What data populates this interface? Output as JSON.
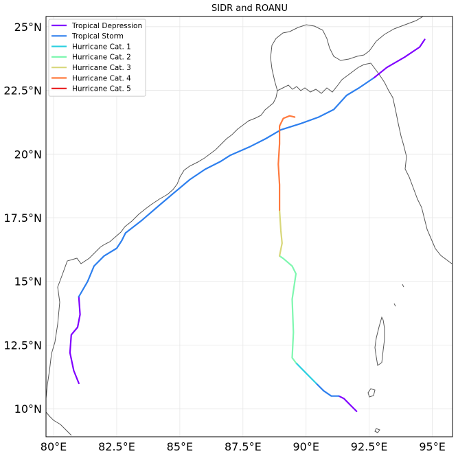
{
  "title": "SIDR and ROANU",
  "chart_data": {
    "type": "map",
    "title": "SIDR and ROANU",
    "lon_range": [
      79.7,
      95.8
    ],
    "lat_range": [
      8.9,
      25.4
    ],
    "grid": true,
    "legend_position": "upper-left",
    "x_ticks": [
      {
        "value": 80,
        "label": "80°E"
      },
      {
        "value": 82.5,
        "label": "82.5°E"
      },
      {
        "value": 85,
        "label": "85°E"
      },
      {
        "value": 87.5,
        "label": "87.5°E"
      },
      {
        "value": 90,
        "label": "90°E"
      },
      {
        "value": 92.5,
        "label": "92.5°E"
      },
      {
        "value": 95,
        "label": "95°E"
      }
    ],
    "y_ticks": [
      {
        "value": 10,
        "label": "10°N"
      },
      {
        "value": 12.5,
        "label": "12.5°N"
      },
      {
        "value": 15,
        "label": "15°N"
      },
      {
        "value": 17.5,
        "label": "17.5°N"
      },
      {
        "value": 20,
        "label": "20°N"
      },
      {
        "value": 22.5,
        "label": "22.5°N"
      },
      {
        "value": 25,
        "label": "25°N"
      }
    ],
    "categories": [
      {
        "name": "Tropical Depression",
        "color": "#8000ff"
      },
      {
        "name": "Tropical Storm",
        "color": "#2d7fee"
      },
      {
        "name": "Hurricane Cat. 1",
        "color": "#2cd0e0"
      },
      {
        "name": "Hurricane Cat. 2",
        "color": "#7ff7b0"
      },
      {
        "name": "Hurricane Cat. 3",
        "color": "#d8d77a"
      },
      {
        "name": "Hurricane Cat. 4",
        "color": "#ff7a3e"
      },
      {
        "name": "Hurricane Cat. 5",
        "color": "#e8191c"
      }
    ],
    "tracks": [
      {
        "storm": "ROANU",
        "segments": [
          {
            "category": "Tropical Depression",
            "points": [
              [
                81.0,
                11.0
              ],
              [
                80.8,
                11.5
              ],
              [
                80.65,
                12.2
              ],
              [
                80.7,
                12.9
              ],
              [
                80.95,
                13.2
              ],
              [
                81.05,
                13.7
              ],
              [
                81.0,
                14.4
              ]
            ]
          },
          {
            "category": "Tropical Storm",
            "points": [
              [
                81.0,
                14.4
              ],
              [
                81.35,
                15.0
              ],
              [
                81.6,
                15.6
              ],
              [
                82.0,
                16.0
              ],
              [
                82.5,
                16.3
              ],
              [
                82.7,
                16.6
              ],
              [
                82.85,
                16.9
              ],
              [
                83.5,
                17.4
              ],
              [
                84.2,
                18.0
              ],
              [
                84.8,
                18.5
              ],
              [
                85.4,
                19.0
              ],
              [
                86.0,
                19.4
              ],
              [
                86.6,
                19.7
              ],
              [
                87.0,
                19.95
              ],
              [
                87.8,
                20.3
              ],
              [
                88.4,
                20.6
              ],
              [
                89.0,
                20.95
              ],
              [
                89.8,
                21.2
              ],
              [
                90.5,
                21.45
              ],
              [
                91.1,
                21.75
              ],
              [
                91.6,
                22.3
              ],
              [
                92.1,
                22.6
              ],
              [
                92.7,
                23.0
              ]
            ]
          },
          {
            "category": "Tropical Depression",
            "points": [
              [
                92.7,
                23.0
              ],
              [
                93.2,
                23.4
              ],
              [
                93.9,
                23.8
              ],
              [
                94.5,
                24.2
              ],
              [
                94.7,
                24.5
              ]
            ]
          }
        ]
      },
      {
        "storm": "SIDR",
        "segments": [
          {
            "category": "Tropical Depression",
            "points": [
              [
                92.0,
                9.9
              ],
              [
                91.8,
                10.1
              ],
              [
                91.5,
                10.4
              ],
              [
                91.3,
                10.5
              ]
            ]
          },
          {
            "category": "Tropical Storm",
            "points": [
              [
                91.3,
                10.5
              ],
              [
                91.0,
                10.5
              ],
              [
                90.7,
                10.7
              ],
              [
                90.4,
                11.0
              ]
            ]
          },
          {
            "category": "Hurricane Cat. 1",
            "points": [
              [
                90.4,
                11.0
              ],
              [
                90.0,
                11.4
              ],
              [
                89.6,
                11.8
              ]
            ]
          },
          {
            "category": "Hurricane Cat. 2",
            "points": [
              [
                89.6,
                11.8
              ],
              [
                89.45,
                12.0
              ],
              [
                89.5,
                13.0
              ],
              [
                89.45,
                14.3
              ],
              [
                89.6,
                15.3
              ],
              [
                89.45,
                15.6
              ],
              [
                89.1,
                15.9
              ],
              [
                88.95,
                16.0
              ]
            ]
          },
          {
            "category": "Hurricane Cat. 3",
            "points": [
              [
                88.95,
                16.0
              ],
              [
                89.05,
                16.5
              ],
              [
                89.0,
                17.0
              ],
              [
                88.95,
                17.8
              ]
            ]
          },
          {
            "category": "Hurricane Cat. 4",
            "points": [
              [
                88.95,
                17.8
              ],
              [
                88.95,
                18.8
              ],
              [
                88.9,
                19.6
              ],
              [
                88.95,
                20.4
              ],
              [
                88.95,
                21.1
              ],
              [
                89.1,
                21.4
              ],
              [
                89.35,
                21.5
              ],
              [
                89.55,
                21.45
              ]
            ]
          }
        ]
      }
    ]
  }
}
